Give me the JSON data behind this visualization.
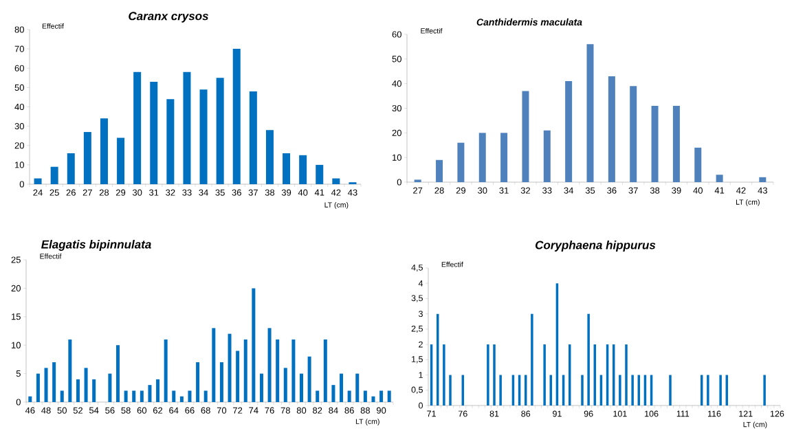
{
  "chart_data": [
    {
      "type": "bar",
      "title": "Caranx crysos",
      "ylabel": "Effectif",
      "xlabel": "LT (cm)",
      "color": "#0070c0",
      "categories": [
        "24",
        "25",
        "26",
        "27",
        "28",
        "29",
        "30",
        "31",
        "32",
        "33",
        "34",
        "35",
        "36",
        "37",
        "38",
        "39",
        "40",
        "41",
        "42",
        "43"
      ],
      "values": [
        3,
        9,
        16,
        27,
        34,
        24,
        58,
        53,
        44,
        58,
        49,
        55,
        70,
        48,
        28,
        16,
        15,
        10,
        3,
        1
      ],
      "ylim": [
        0,
        80
      ],
      "yticks": [
        0,
        10,
        20,
        30,
        40,
        50,
        60,
        70,
        80
      ]
    },
    {
      "type": "bar",
      "title": "Canthidermis maculata",
      "ylabel": "Effectif",
      "xlabel": "LT (cm)",
      "color": "#4f81bd",
      "categories": [
        "27",
        "28",
        "29",
        "30",
        "31",
        "32",
        "33",
        "34",
        "35",
        "36",
        "37",
        "38",
        "39",
        "40",
        "41",
        "42",
        "43"
      ],
      "values": [
        1,
        9,
        16,
        20,
        20,
        37,
        21,
        41,
        56,
        43,
        39,
        31,
        31,
        14,
        3,
        0,
        2
      ],
      "ylim": [
        0,
        60
      ],
      "yticks": [
        0,
        10,
        20,
        30,
        40,
        50,
        60
      ]
    },
    {
      "type": "bar",
      "title": "Elagatis bipinnulata",
      "ylabel": "Effectif",
      "xlabel": "LT (cm)",
      "color": "#0070c0",
      "categories": [
        "46",
        null,
        "48",
        null,
        "50",
        null,
        "52",
        null,
        "54",
        null,
        "56",
        null,
        "58",
        null,
        "60",
        null,
        "62",
        null,
        "64",
        null,
        "66",
        null,
        "68",
        null,
        "70",
        null,
        "72",
        null,
        "74",
        null,
        "76",
        null,
        "78",
        null,
        "80",
        null,
        "82",
        null,
        "84",
        null,
        "86",
        null,
        "88",
        null,
        "90",
        null
      ],
      "values": [
        1,
        5,
        6,
        7,
        2,
        11,
        4,
        6,
        4,
        0,
        5,
        10,
        2,
        2,
        2,
        3,
        4,
        11,
        2,
        1,
        2,
        7,
        2,
        13,
        7,
        12,
        9,
        11,
        20,
        5,
        13,
        11,
        6,
        11,
        5,
        8,
        2,
        11,
        3,
        5,
        2,
        5,
        2,
        1,
        2,
        2
      ],
      "ylim": [
        0,
        25
      ],
      "yticks": [
        0,
        5,
        10,
        15,
        20,
        25
      ]
    },
    {
      "type": "bar",
      "title": "Coryphaena hippurus",
      "ylabel": "Effectif",
      "xlabel": "LT (cm)",
      "color": "#0070c0",
      "categories": [
        "71",
        null,
        null,
        null,
        null,
        "76",
        null,
        null,
        null,
        null,
        "81",
        null,
        null,
        null,
        null,
        "86",
        null,
        null,
        null,
        null,
        "91",
        null,
        null,
        null,
        null,
        "96",
        null,
        null,
        null,
        null,
        "101",
        null,
        null,
        null,
        null,
        "106",
        null,
        null,
        null,
        null,
        "111",
        null,
        null,
        null,
        null,
        "116",
        null,
        null,
        null,
        null,
        "121",
        null,
        null,
        null,
        null,
        "126"
      ],
      "values": [
        2,
        3,
        2,
        1,
        0,
        1,
        0,
        0,
        0,
        2,
        2,
        1,
        0,
        1,
        1,
        1,
        3,
        0,
        2,
        1,
        4,
        1,
        2,
        0,
        1,
        3,
        2,
        1,
        2,
        2,
        1,
        2,
        1,
        1,
        1,
        1,
        0,
        0,
        1,
        0,
        0,
        0,
        0,
        1,
        1,
        0,
        1,
        1,
        0,
        0,
        0,
        0,
        0,
        1,
        0,
        0
      ],
      "ylim": [
        0,
        4.5
      ],
      "yticks": [
        0,
        {
          "value": 0.5,
          "label": "0,5"
        },
        1,
        {
          "value": 1.5,
          "label": "1,5"
        },
        2,
        {
          "value": 2.5,
          "label": "2,5"
        },
        3,
        {
          "value": 3.5,
          "label": "3,5"
        },
        4,
        {
          "value": 4.5,
          "label": "4,5"
        }
      ]
    }
  ]
}
